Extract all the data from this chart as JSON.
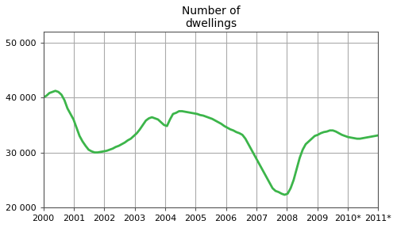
{
  "title": "Number of\ndwellings",
  "title_fontsize": 10,
  "line_color": "#3cb54a",
  "line_width": 2.0,
  "background_color": "#ffffff",
  "ylim": [
    20000,
    52000
  ],
  "yticks": [
    20000,
    30000,
    40000,
    50000
  ],
  "ytick_labels": [
    "20 000",
    "30 000",
    "40 000",
    "50 000"
  ],
  "xtick_labels": [
    "2000",
    "2001",
    "2002",
    "2003",
    "2004",
    "2005",
    "2006",
    "2007",
    "2008",
    "2009",
    "2010*",
    "2011*"
  ],
  "grid_color": "#aaaaaa",
  "x_values": [
    0,
    1,
    2,
    3,
    4,
    5,
    6,
    7,
    8,
    9,
    10,
    11,
    12,
    13,
    14,
    15,
    16,
    17,
    18,
    19,
    20,
    21,
    22,
    23,
    24,
    25,
    26,
    27,
    28,
    29,
    30,
    31,
    32,
    33,
    34,
    35,
    36,
    37,
    38,
    39,
    40,
    41,
    42,
    43,
    44,
    45,
    46,
    47,
    48,
    49,
    50,
    51,
    52,
    53,
    54,
    55,
    56,
    57,
    58,
    59,
    60,
    61,
    62,
    63,
    64,
    65,
    66,
    67,
    68,
    69,
    70,
    71,
    72,
    73,
    74,
    75,
    76,
    77,
    78,
    79,
    80,
    81,
    82,
    83,
    84,
    85,
    86,
    87,
    88,
    89,
    90,
    91,
    92,
    93,
    94,
    95,
    96,
    97,
    98,
    99,
    100,
    101,
    102,
    103,
    104,
    105,
    106,
    107,
    108,
    109,
    110,
    111
  ],
  "y_values": [
    40000,
    40300,
    40800,
    41000,
    41200,
    41000,
    40500,
    39500,
    38000,
    37000,
    36000,
    34500,
    33000,
    32000,
    31200,
    30500,
    30200,
    30000,
    30000,
    30100,
    30200,
    30300,
    30500,
    30700,
    31000,
    31200,
    31500,
    31800,
    32200,
    32500,
    33000,
    33500,
    34200,
    35000,
    35800,
    36200,
    36400,
    36200,
    36000,
    35500,
    35000,
    34800,
    36000,
    37000,
    37200,
    37500,
    37500,
    37400,
    37300,
    37200,
    37100,
    37000,
    36800,
    36700,
    36500,
    36300,
    36100,
    35800,
    35500,
    35200,
    34800,
    34500,
    34200,
    34000,
    33700,
    33500,
    33200,
    32500,
    31500,
    30500,
    29500,
    28500,
    27500,
    26500,
    25500,
    24500,
    23500,
    23000,
    22800,
    22500,
    22300,
    22500,
    23500,
    25000,
    27000,
    29000,
    30500,
    31500,
    32000,
    32500,
    33000,
    33200,
    33500,
    33700,
    33800,
    34000,
    34000,
    33800,
    33500,
    33200,
    33000,
    32800,
    32700,
    32600,
    32500,
    32500,
    32600,
    32700,
    32800,
    32900,
    33000,
    33100
  ]
}
